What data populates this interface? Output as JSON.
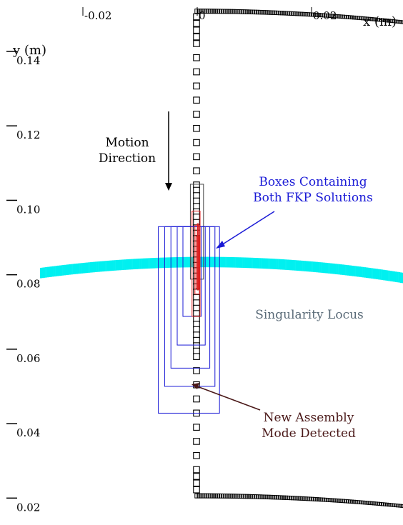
{
  "chart_data": {
    "type": "scatter",
    "xlabel": "x (m)",
    "ylabel": "y (m)",
    "xlim": [
      -0.033,
      0.036
    ],
    "ylim": [
      0.0168,
      0.1565
    ],
    "x_ticks": [
      {
        "value": -0.02,
        "label": "-0.02"
      },
      {
        "value": 0,
        "label": "0"
      },
      {
        "value": 0.02,
        "label": "0.02"
      }
    ],
    "y_ticks": [
      {
        "value": 0.14,
        "label": "0.14"
      },
      {
        "value": 0.12,
        "label": "0.12"
      },
      {
        "value": 0.1,
        "label": "0.10"
      },
      {
        "value": 0.08,
        "label": "0.08"
      },
      {
        "value": 0.06,
        "label": "0.06"
      },
      {
        "value": 0.04,
        "label": "0.04"
      },
      {
        "value": 0.02,
        "label": "0.02"
      }
    ],
    "colors": {
      "path_boxes": "#000000",
      "singularity_locus": "#00f0f0",
      "fkp_boxes": "#1a1ad6",
      "refined_boxes": "#e02020",
      "label_blue": "#1a1ad6",
      "label_gray": "#5a6b78",
      "label_maroon": "#4a1818"
    },
    "top_arc": {
      "x_start": -0.0004,
      "x_end": 0.036,
      "y_start": 0.1535,
      "y_end": 0.1505
    },
    "bottom_arc": {
      "x_start": -0.0004,
      "x_end": 0.036,
      "y_start": 0.0233,
      "y_end": 0.0205
    },
    "vertical_path": {
      "x": 0.0,
      "y_start": 0.152,
      "y_end": 0.024,
      "step_large": 0.0038,
      "step_small": 0.0018
    },
    "singularity_band": {
      "x_start": -0.0275,
      "x_end": 0.036,
      "y_top_center": 0.0875,
      "thickness": 0.0028,
      "curvature": 0.0036
    },
    "blue_boxes": [
      {
        "x0": -0.0068,
        "x1": 0.0039,
        "y0": 0.0455,
        "y1": 0.0956
      },
      {
        "x0": -0.0057,
        "x1": 0.0031,
        "y0": 0.0527,
        "y1": 0.0956
      },
      {
        "x0": -0.0046,
        "x1": 0.0022,
        "y0": 0.0576,
        "y1": 0.0956
      },
      {
        "x0": -0.0035,
        "x1": 0.0014,
        "y0": 0.0638,
        "y1": 0.0956
      },
      {
        "x0": -0.0025,
        "x1": 0.0007,
        "y0": 0.0715,
        "y1": 0.0956
      }
    ],
    "red_boxes": [
      {
        "x0": -0.0009,
        "x1": 0.0005,
        "y0": 0.0715,
        "y1": 0.0998
      },
      {
        "x0": -0.0004,
        "x1": 0.0004,
        "y0": 0.0775,
        "y1": 0.096
      },
      {
        "x0": -0.0002,
        "x1": 0.0003,
        "y0": 0.079,
        "y1": 0.093
      }
    ],
    "gray_box": {
      "x0": -0.0012,
      "x1": 0.0011,
      "y0": 0.0815,
      "y1": 0.107
    },
    "annotations": {
      "motion": {
        "lines": [
          "Motion",
          "Direction"
        ]
      },
      "fkp": {
        "lines": [
          "Boxes Containing",
          "Both FKP Solutions"
        ]
      },
      "singularity": {
        "text": "Singularity Locus"
      },
      "assembly": {
        "lines": [
          "New Assembly",
          "Mode Detected"
        ]
      }
    }
  }
}
